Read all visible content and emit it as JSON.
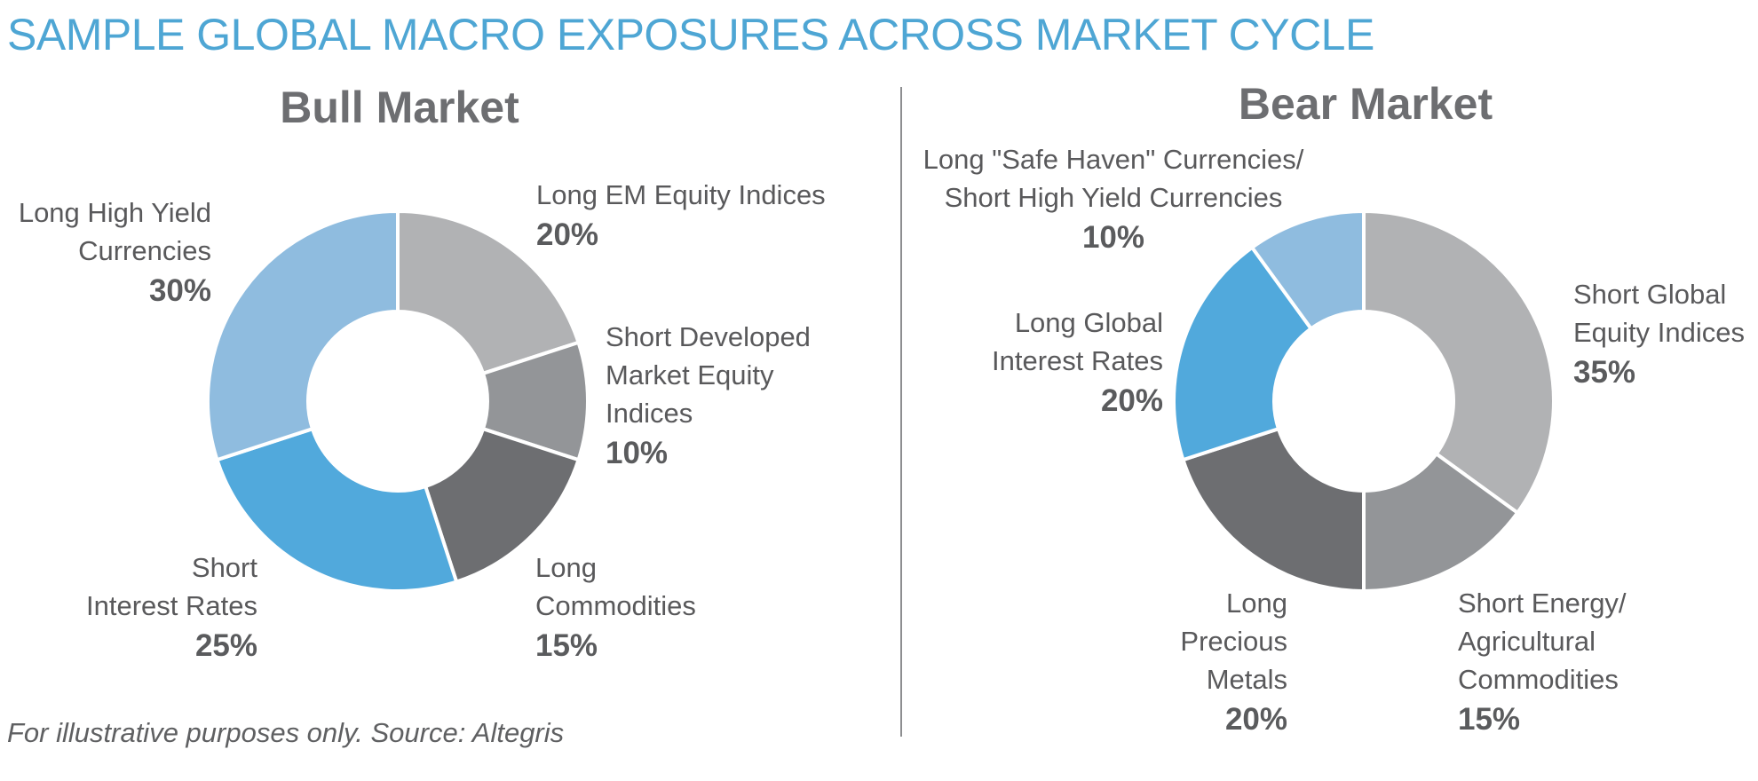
{
  "title": "SAMPLE GLOBAL MACRO EXPOSURES ACROSS MARKET CYCLE",
  "footer": "For illustrative purposes only. Source: Altegris",
  "chart_data": [
    {
      "type": "pie",
      "title": "Bull Market",
      "donut": true,
      "slices": [
        {
          "label": "Long EM Equity Indices",
          "value": 20,
          "value_label": "20%",
          "color": "#b1b2b4"
        },
        {
          "label": "Short Developed Market Equity Indices",
          "value": 10,
          "value_label": "10%",
          "color": "#939598"
        },
        {
          "label": "Long Commodities",
          "value": 15,
          "value_label": "15%",
          "color": "#6d6e71"
        },
        {
          "label": "Short Interest Rates",
          "value": 25,
          "value_label": "25%",
          "color": "#51a9dc"
        },
        {
          "label": "Long High Yield Currencies",
          "value": 30,
          "value_label": "30%",
          "color": "#8fbcdf"
        }
      ]
    },
    {
      "type": "pie",
      "title": "Bear Market",
      "donut": true,
      "slices": [
        {
          "label": "Short Global Equity Indices",
          "value": 35,
          "value_label": "35%",
          "color": "#b1b2b4"
        },
        {
          "label": "Short Energy/ Agricultural Commodities",
          "value": 15,
          "value_label": "15%",
          "color": "#939598"
        },
        {
          "label": "Long Precious Metals",
          "value": 20,
          "value_label": "20%",
          "color": "#6d6e71"
        },
        {
          "label": "Long Global Interest Rates",
          "value": 20,
          "value_label": "20%",
          "color": "#51a9dc"
        },
        {
          "label": "Long \"Safe Haven\" Currencies/ Short High Yield Currencies",
          "value": 10,
          "value_label": "10%",
          "color": "#8fbcdf"
        }
      ]
    }
  ],
  "label_lines": {
    "bull": [
      [
        "Long EM Equity Indices"
      ],
      [
        "Short Developed",
        "Market Equity",
        "Indices"
      ],
      [
        "Long",
        "Commodities"
      ],
      [
        "Short",
        "Interest Rates"
      ],
      [
        "Long High Yield",
        "Currencies"
      ]
    ],
    "bear": [
      [
        "Short Global",
        "Equity Indices"
      ],
      [
        "Short Energy/",
        "Agricultural",
        "Commodities"
      ],
      [
        "Long",
        "Precious",
        "Metals"
      ],
      [
        "Long Global",
        "Interest Rates"
      ],
      [
        "Long \"Safe Haven\" Currencies/",
        "Short High Yield Currencies"
      ]
    ]
  }
}
